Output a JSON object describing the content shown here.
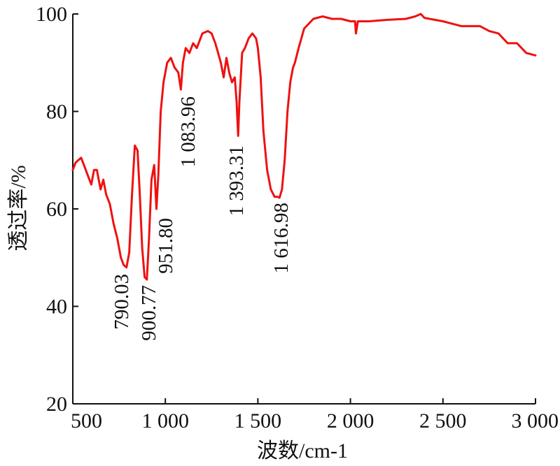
{
  "chart_data": {
    "type": "line",
    "title": "",
    "xlabel": "波数/cm-1",
    "ylabel": "透过率/%",
    "xlim": [
      500,
      3000
    ],
    "ylim": [
      20,
      100
    ],
    "x_ticks": [
      500,
      1000,
      1500,
      2000,
      2500,
      3000
    ],
    "x_tick_labels": [
      "500",
      "1 000",
      "1 500",
      "2 000",
      "2 500",
      "3 000"
    ],
    "y_ticks": [
      20,
      40,
      60,
      80,
      100
    ],
    "y_tick_labels": [
      "20",
      "40",
      "60",
      "80",
      "100"
    ],
    "grid": false,
    "series": [
      {
        "color": "#ee1111",
        "x": [
          500,
          515,
          530,
          545,
          560,
          575,
          590,
          600,
          615,
          630,
          640,
          650,
          665,
          680,
          700,
          720,
          740,
          760,
          775,
          790,
          805,
          820,
          835,
          850,
          862,
          875,
          888,
          900,
          912,
          925,
          940,
          951.8,
          962,
          975,
          990,
          1010,
          1030,
          1050,
          1070,
          1083.96,
          1095,
          1110,
          1130,
          1150,
          1170,
          1200,
          1230,
          1250,
          1270,
          1285,
          1300,
          1315,
          1330,
          1345,
          1360,
          1375,
          1385,
          1393.31,
          1400,
          1415,
          1430,
          1450,
          1470,
          1490,
          1500,
          1515,
          1530,
          1550,
          1570,
          1590,
          1605,
          1616.98,
          1630,
          1645,
          1660,
          1675,
          1690,
          1700,
          1720,
          1750,
          1800,
          1850,
          1900,
          1950,
          2000,
          2025,
          2030,
          2040,
          2100,
          2200,
          2300,
          2350,
          2380,
          2400,
          2500,
          2600,
          2700,
          2750,
          2800,
          2850,
          2900,
          2950,
          3000
        ],
        "y": [
          68,
          69.5,
          70,
          70.5,
          69,
          67.5,
          66,
          65,
          68,
          68,
          66,
          64,
          66,
          63,
          61,
          57,
          54,
          50,
          48.5,
          48,
          51,
          63,
          73,
          72,
          63,
          52,
          46,
          45.5,
          54,
          66,
          69,
          60,
          67,
          80,
          86,
          90,
          91,
          89,
          88,
          84.5,
          90,
          93,
          92,
          94,
          93,
          96,
          96.5,
          96,
          94,
          92,
          90,
          87,
          91,
          88,
          86,
          87,
          82,
          75,
          82,
          92,
          93,
          95,
          96,
          95,
          93,
          87,
          76,
          68,
          64,
          62.5,
          62.5,
          62.3,
          64,
          70,
          80,
          86,
          89,
          90,
          93,
          97,
          99,
          99.5,
          99,
          99,
          98.5,
          98.5,
          96,
          98.5,
          98.5,
          98.8,
          99,
          99.5,
          100,
          99.2,
          98.5,
          97.5,
          97.5,
          96.5,
          96,
          94,
          94,
          92,
          91.5
        ]
      }
    ],
    "annotations": [
      "790.03",
      "900.77",
      "951.80",
      "1 083.96",
      "1 393.31",
      "1 616.98"
    ]
  }
}
